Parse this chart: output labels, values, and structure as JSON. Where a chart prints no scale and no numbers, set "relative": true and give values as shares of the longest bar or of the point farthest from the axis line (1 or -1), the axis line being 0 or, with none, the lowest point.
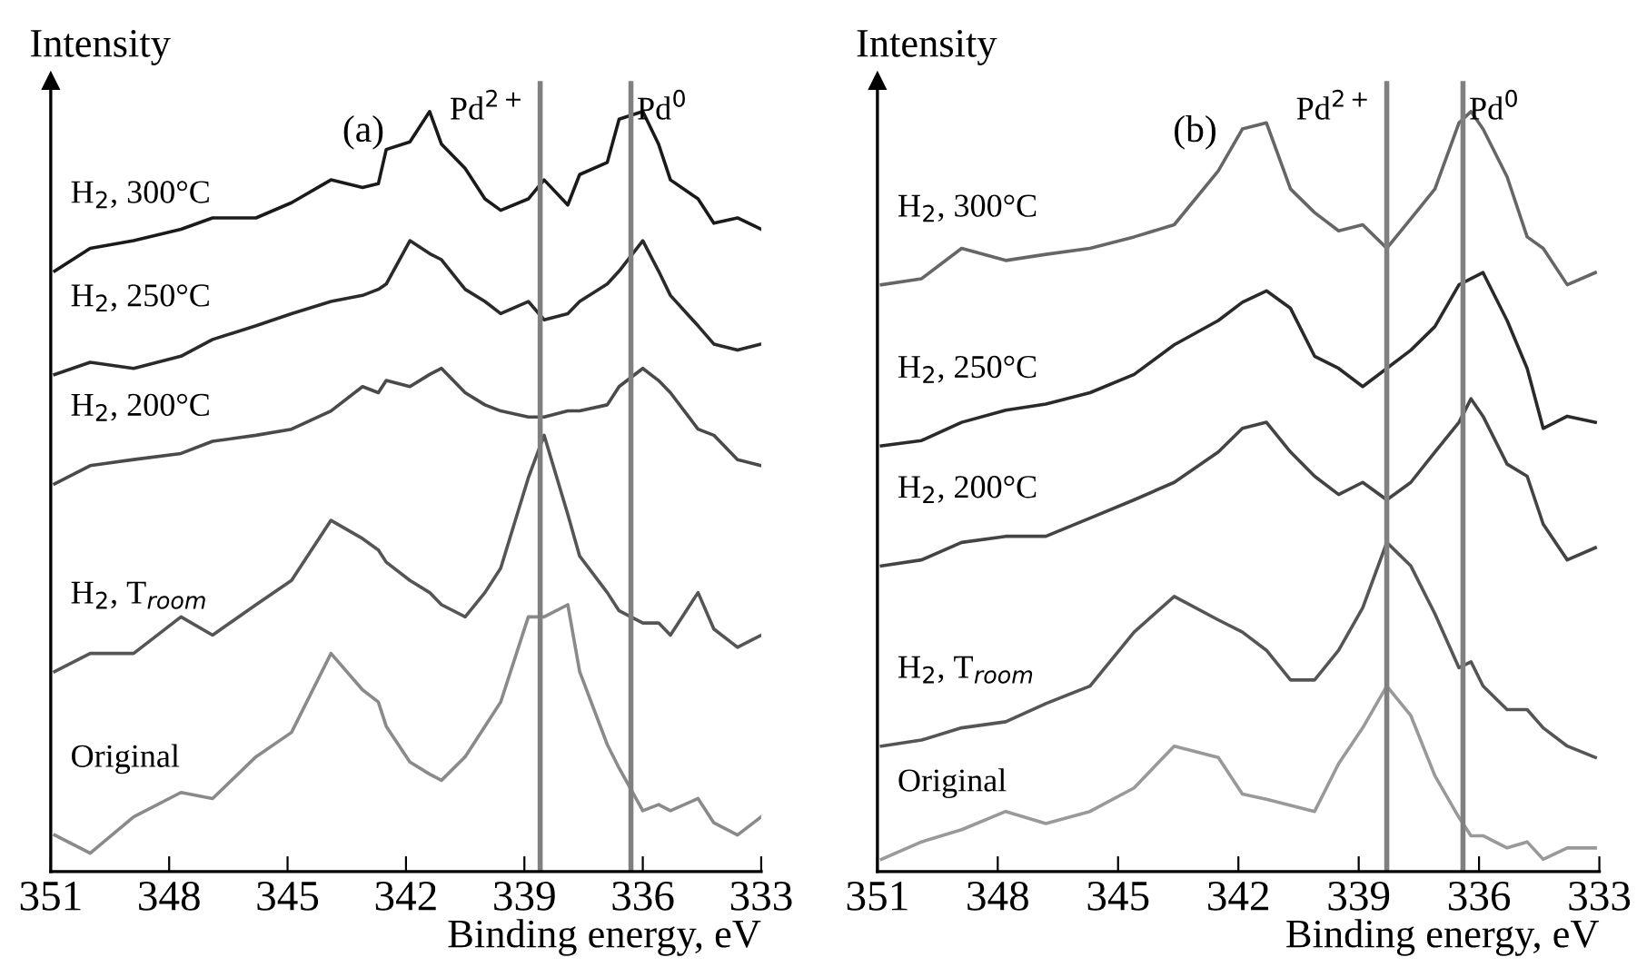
{
  "chart_data": [
    {
      "type": "line",
      "relative": true,
      "ylabel": "Intensity",
      "xlabel": "Binding energy, eV",
      "annotations": [
        "(a)"
      ],
      "xlim": [
        351,
        333
      ],
      "xticks": [
        351,
        348,
        345,
        342,
        339,
        336,
        333
      ],
      "tick_labels": "x",
      "grid": false,
      "legend": false,
      "x": [
        350.9,
        350.0,
        348.9,
        347.7,
        346.9,
        345.8,
        344.9,
        343.9,
        343.1,
        342.7,
        342.5,
        341.9,
        341.4,
        341.1,
        340.5,
        340.0,
        339.6,
        338.9,
        338.5,
        337.9,
        337.6,
        336.9,
        336.6,
        336.0,
        335.6,
        335.3,
        334.6,
        334.2,
        333.6,
        333.0
      ],
      "ref_lines": [
        {
          "axis": "x",
          "value": 338.6,
          "label": "Pd$^{2+}$",
          "color": "#808080"
        },
        {
          "axis": "x",
          "value": 336.3,
          "label": "Pd$^{0}$",
          "color": "#808080"
        }
      ],
      "series": [
        {
          "name": "H$_{2}$, 300°C",
          "color": "#1a1a1a",
          "values": [
            0.79,
            0.82,
            0.83,
            0.845,
            0.86,
            0.86,
            0.88,
            0.91,
            0.9,
            0.905,
            0.95,
            0.96,
            1.0,
            0.957,
            0.925,
            0.885,
            0.87,
            0.885,
            0.91,
            0.877,
            0.917,
            0.933,
            0.99,
            1.0,
            0.957,
            0.91,
            0.885,
            0.853,
            0.86,
            0.845
          ]
        },
        {
          "name": "H$_{2}$, 250°C",
          "color": "#2a2a2a",
          "values": [
            0.654,
            0.67,
            0.662,
            0.678,
            0.7,
            0.718,
            0.734,
            0.75,
            0.758,
            0.766,
            0.773,
            0.83,
            0.813,
            0.805,
            0.766,
            0.75,
            0.734,
            0.75,
            0.726,
            0.734,
            0.75,
            0.773,
            0.79,
            0.83,
            0.79,
            0.758,
            0.718,
            0.694,
            0.686,
            0.694
          ]
        },
        {
          "name": "H$_{2}$, 200°C",
          "color": "#4a4a4a",
          "values": [
            0.51,
            0.534,
            0.542,
            0.55,
            0.566,
            0.574,
            0.582,
            0.606,
            0.638,
            0.63,
            0.646,
            0.638,
            0.654,
            0.662,
            0.63,
            0.614,
            0.606,
            0.598,
            0.598,
            0.606,
            0.606,
            0.614,
            0.638,
            0.662,
            0.646,
            0.63,
            0.582,
            0.574,
            0.542,
            0.534
          ]
        },
        {
          "name": "H$_{2}$, T$_{room}$",
          "color": "#555555",
          "values": [
            0.263,
            0.287,
            0.287,
            0.335,
            0.311,
            0.351,
            0.383,
            0.462,
            0.438,
            0.423,
            0.407,
            0.383,
            0.367,
            0.351,
            0.335,
            0.367,
            0.399,
            0.518,
            0.574,
            0.47,
            0.415,
            0.367,
            0.343,
            0.327,
            0.327,
            0.311,
            0.367,
            0.319,
            0.295,
            0.311
          ]
        },
        {
          "name": "Original",
          "color": "#8a8a8a",
          "values": [
            0.048,
            0.024,
            0.072,
            0.104,
            0.096,
            0.151,
            0.183,
            0.287,
            0.239,
            0.223,
            0.191,
            0.144,
            0.128,
            0.12,
            0.151,
            0.191,
            0.223,
            0.335,
            0.335,
            0.351,
            0.263,
            0.167,
            0.136,
            0.08,
            0.088,
            0.08,
            0.096,
            0.064,
            0.048,
            0.072
          ]
        }
      ]
    },
    {
      "type": "line",
      "relative": true,
      "ylabel": "Intensity",
      "xlabel": "Binding energy, eV",
      "annotations": [
        "(b)"
      ],
      "xlim": [
        351,
        333
      ],
      "xticks": [
        351,
        348,
        345,
        342,
        339,
        336,
        333
      ],
      "tick_labels": "x",
      "grid": false,
      "legend": false,
      "x": [
        350.9,
        349.9,
        348.9,
        347.8,
        346.8,
        345.7,
        344.6,
        343.6,
        342.5,
        341.9,
        341.3,
        340.7,
        340.1,
        339.5,
        338.9,
        338.3,
        337.7,
        337.1,
        336.5,
        336.2,
        335.9,
        335.3,
        334.8,
        334.4,
        333.8,
        333.1
      ],
      "ref_lines": [
        {
          "axis": "x",
          "value": 338.3,
          "label": "Pd$^{2+}$",
          "color": "#808080"
        },
        {
          "axis": "x",
          "value": 336.4,
          "label": "Pd$^{0}$",
          "color": "#808080"
        }
      ],
      "series": [
        {
          "name": "H$_{2}$, 300°C",
          "color": "#666666",
          "values": [
            0.772,
            0.78,
            0.82,
            0.804,
            0.812,
            0.82,
            0.835,
            0.851,
            0.922,
            0.977,
            0.985,
            0.898,
            0.867,
            0.843,
            0.851,
            0.82,
            0.859,
            0.898,
            0.985,
            1.0,
            0.977,
            0.914,
            0.835,
            0.82,
            0.772,
            0.788
          ]
        },
        {
          "name": "H$_{2}$, 250°C",
          "color": "#2a2a2a",
          "values": [
            0.56,
            0.567,
            0.591,
            0.607,
            0.615,
            0.63,
            0.654,
            0.693,
            0.725,
            0.749,
            0.764,
            0.741,
            0.678,
            0.662,
            0.638,
            0.662,
            0.686,
            0.717,
            0.772,
            0.78,
            0.788,
            0.725,
            0.662,
            0.583,
            0.599,
            0.591
          ]
        },
        {
          "name": "H$_{2}$, 200°C",
          "color": "#444444",
          "values": [
            0.402,
            0.41,
            0.433,
            0.441,
            0.441,
            0.465,
            0.489,
            0.512,
            0.552,
            0.583,
            0.591,
            0.552,
            0.52,
            0.496,
            0.512,
            0.489,
            0.512,
            0.552,
            0.591,
            0.622,
            0.599,
            0.536,
            0.52,
            0.457,
            0.41,
            0.426
          ]
        },
        {
          "name": "H$_{2}$, T$_{room}$",
          "color": "#555555",
          "values": [
            0.165,
            0.173,
            0.189,
            0.197,
            0.221,
            0.244,
            0.315,
            0.362,
            0.331,
            0.315,
            0.291,
            0.252,
            0.252,
            0.291,
            0.347,
            0.433,
            0.402,
            0.339,
            0.268,
            0.276,
            0.244,
            0.213,
            0.213,
            0.189,
            0.165,
            0.15
          ]
        },
        {
          "name": "Original",
          "color": "#999999",
          "values": [
            0.016,
            0.039,
            0.055,
            0.079,
            0.063,
            0.079,
            0.11,
            0.165,
            0.15,
            0.102,
            0.095,
            0.087,
            0.079,
            0.142,
            0.189,
            0.244,
            0.205,
            0.126,
            0.071,
            0.047,
            0.047,
            0.031,
            0.039,
            0.016,
            0.031,
            0.031
          ]
        }
      ]
    }
  ]
}
